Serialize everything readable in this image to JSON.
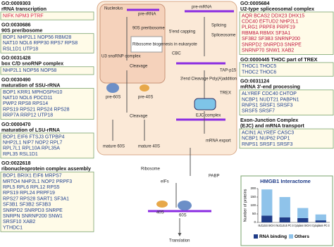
{
  "left_panel": {
    "boxes": [
      {
        "title": [
          "GO:0009303",
          "rRNA transcription"
        ],
        "gene_color": "#d6204b",
        "lines": [
          "NIFK NPM3 PTRF"
        ]
      },
      {
        "title": [
          "GO:0030686",
          "90S preribosome"
        ],
        "gene_color": "#1f3f8f",
        "lines": [
          "BOP1 NHP2L1 NOP56 RBM28",
          "NAT10 NOL6 RPP30 RPS7 RPS8",
          "RSL1D1 UTP18"
        ]
      },
      {
        "title": [
          "GO:0031428",
          "box C/D snoRNP complex"
        ],
        "gene_color": "#1f3f8f",
        "lines": [
          "NHP2L1 NOP56 NOP58"
        ]
      },
      {
        "title": [
          "GO:0030490",
          "maturation of SSU-rRNA"
        ],
        "gene_color": "#1f3f8f",
        "lines": [
          "BOP1 KRR1 MPHOSPH10",
          "NAT10 NOL6 PDCD11",
          "PWP2 RPS8 RPS14",
          "RPS19 RPS21 RPS24 RPS28",
          "RRP7A RRP12 UTP18"
        ]
      },
      {
        "title": [
          "GO:0000470",
          "maturation of LSU-rRNA"
        ],
        "gene_color": "#1f3f8f",
        "lines": [
          "BOP1 EIF6 FTSJ3 GTPBP4",
          "NHP2L1 NIP7 NOP2 RPL7",
          "RPL7L1 RPL10A RPL35A",
          "RPL35 RSL1D1"
        ]
      },
      {
        "title": [
          "GO:0022618",
          "ribonucleoprotein complex assembly"
        ],
        "gene_color": "#1f3f8f",
        "lines": [
          "BOP1 BRIX1 EIF6 MRPS7",
          "MRTO4 NHP2L1 NOP2 PRPF3",
          "RPL5 RPL6 RPL12 RPS5",
          "RPS19 RPL24 PRPF19",
          "RPS27 RPS28 SART1 SF3A1",
          "SF3B1 SF3B2 SF3B3",
          "SNRPD2 SNRPD3 SNRPE",
          "SNRPN SNRNP200 SNW1",
          "SRSF10 XAB2",
          "YTHDC1"
        ]
      }
    ]
  },
  "right_panel": {
    "boxes": [
      {
        "title": [
          "GO:0005684",
          "U2-type spliceosomal complex"
        ],
        "gene_color": "#c0143c",
        "lines": [
          "AQR BCAS2 DDX23 DHX15",
          "CDC40 EFTUD2 NHP2L1",
          "PLRG1 PRPF8 PRPF19",
          "RBM8A RBMX SF3A1",
          "SF3B2 SF3B3 SNRNP200",
          "SNRPD2 SNRPD3 SNRPE",
          "SNRNP70 SNW1 XAB2"
        ]
      },
      {
        "title": [
          "GO:0000445 THOC part of TREX"
        ],
        "gene_color": "#1f3f8f",
        "lines": [
          "THOC1 THOC5",
          "THOC2 THOC6"
        ]
      },
      {
        "title": [
          "GO:0031124",
          "mRNA 3'-end processing"
        ],
        "gene_color": "#1f3f8f",
        "lines": [
          "ALYREF CDC40 CHTOP",
          "NCBP1 NUDT21 PABPN1",
          "RNPS1 SRSF1 SRSF3",
          "SRSF5 SRSF7"
        ]
      },
      {
        "title": [
          "Exon-Junction Complex",
          "(EJC) and mRNA transport"
        ],
        "gene_color": "#1f3f8f",
        "lines": [
          "ACIN1 ALYREF CASC3",
          "NCBP1 NUP62 POP1",
          "RNPS1 SRSF1 SRSF3"
        ]
      }
    ]
  },
  "diagram": {
    "labels": [
      "Nucleolus",
      "pre-rRNA",
      "90S preribosome",
      "U3 snoRNP complex",
      "Ribosome biogenesis in eukaryote",
      "Cleavage",
      "pre-60S",
      "pre-40S",
      "Cleavage",
      "mature 60S",
      "mature 40S",
      "Ribosome",
      "pre-mRNA",
      "5'end capping",
      "CBC",
      "Splicing",
      "Spliceosome",
      "3'end Cleavage Poly(A)addition",
      "TREX",
      "EJC complex",
      "TAP-p15",
      "mRNA export",
      "eIFs",
      "PABP",
      "40S",
      "60S",
      "Translation"
    ]
  },
  "chart_data": {
    "type": "bar",
    "stacked": true,
    "title": "HMGB1 Interactome",
    "y_label": "Number of proteins",
    "categories": [
      "NUCLEUS SKOV-3",
      "NUCLEUS PC-3",
      "Cytoplasm SKOV-3",
      "Cytoplasm PC-3"
    ],
    "series": [
      {
        "name": "RNA binding",
        "color": "#1f3c88",
        "values": [
          40,
          30,
          25,
          12
        ]
      },
      {
        "name": "Others",
        "color": "#8fc3ea",
        "values": [
          155,
          120,
          60,
          35
        ]
      }
    ],
    "ylim": [
      0,
      200
    ],
    "yticks": [
      0,
      50,
      100,
      150,
      200
    ]
  }
}
